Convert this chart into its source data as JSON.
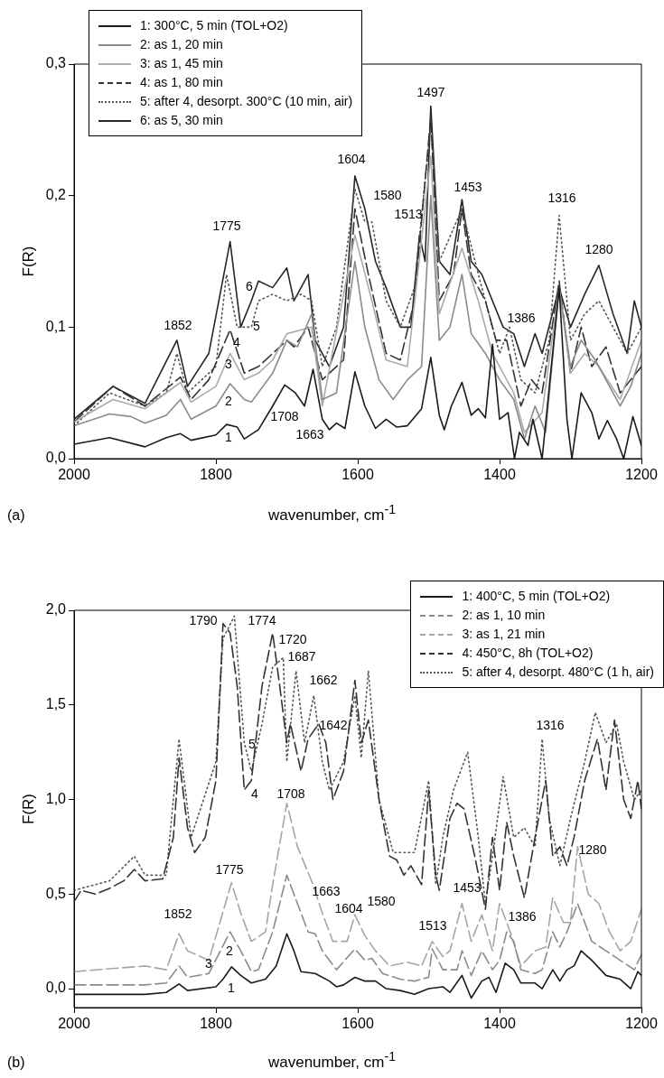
{
  "chart_data": [
    {
      "type": "line",
      "xlabel": "wavenumber, cm$^{-1}$",
      "ylabel": "F(R)",
      "xlim": [
        2000,
        1200
      ],
      "xticks": [
        2000,
        1800,
        1600,
        1400,
        1200
      ],
      "ylim": [
        0,
        0.3
      ],
      "yticks": [
        {
          "value": 0,
          "label": "0,0"
        },
        {
          "value": 0.1,
          "label": "0,1"
        },
        {
          "value": 0.2,
          "label": "0,2"
        },
        {
          "value": 0.3,
          "label": "0,3"
        }
      ],
      "legend": "top left",
      "marker": "none",
      "series": [
        {
          "name": "1: 300°C, 5 min (TOL+O2)",
          "color": "#1a1a1a",
          "line_style": "solid",
          "x": [
            2000,
            1950,
            1900,
            1870,
            1850,
            1835,
            1800,
            1785,
            1770,
            1760,
            1740,
            1720,
            1703,
            1688,
            1675,
            1663,
            1650,
            1640,
            1630,
            1618,
            1604,
            1590,
            1575,
            1560,
            1545,
            1530,
            1510,
            1497,
            1485,
            1478,
            1468,
            1453,
            1440,
            1430,
            1420,
            1410,
            1400,
            1388,
            1379,
            1372,
            1360,
            1353,
            1340,
            1316,
            1305,
            1298,
            1285,
            1270,
            1260,
            1248,
            1235,
            1225,
            1212,
            1200
          ],
          "values": [
            0.011,
            0.016,
            0.009,
            0.016,
            0.019,
            0.014,
            0.018,
            0.026,
            0.024,
            0.015,
            0.022,
            0.04,
            0.056,
            0.05,
            0.04,
            0.068,
            0.03,
            0.022,
            0.027,
            0.023,
            0.066,
            0.04,
            0.023,
            0.03,
            0.024,
            0.025,
            0.038,
            0.077,
            0.033,
            0.022,
            0.04,
            0.058,
            0.033,
            0.038,
            0.031,
            0.087,
            0.03,
            0.035,
            0.0,
            0.02,
            0.01,
            0.03,
            0.0,
            0.13,
            0.03,
            0.0,
            0.05,
            0.035,
            0.015,
            0.029,
            0.015,
            0.0,
            0.032,
            0.01
          ]
        },
        {
          "name": "2: as 1, 20 min",
          "color": "#8a8a8a",
          "line_style": "solid",
          "x": [
            2000,
            1950,
            1920,
            1900,
            1870,
            1850,
            1835,
            1800,
            1780,
            1760,
            1750,
            1720,
            1700,
            1685,
            1665,
            1650,
            1630,
            1604,
            1590,
            1570,
            1550,
            1530,
            1510,
            1497,
            1485,
            1470,
            1453,
            1440,
            1420,
            1400,
            1380,
            1365,
            1350,
            1335,
            1316,
            1300,
            1285,
            1265,
            1250,
            1230,
            1215,
            1200
          ],
          "values": [
            0.025,
            0.034,
            0.032,
            0.027,
            0.033,
            0.045,
            0.03,
            0.04,
            0.057,
            0.045,
            0.043,
            0.065,
            0.09,
            0.085,
            0.11,
            0.045,
            0.05,
            0.15,
            0.1,
            0.06,
            0.045,
            0.06,
            0.07,
            0.2,
            0.09,
            0.1,
            0.14,
            0.095,
            0.08,
            0.06,
            0.045,
            0.015,
            0.04,
            0.02,
            0.13,
            0.07,
            0.09,
            0.075,
            0.06,
            0.04,
            0.055,
            0.08
          ]
        },
        {
          "name": "3: as 1, 45 min",
          "color": "#ababab",
          "line_style": "solid",
          "x": [
            2000,
            1945,
            1900,
            1850,
            1835,
            1800,
            1780,
            1760,
            1740,
            1720,
            1700,
            1665,
            1650,
            1604,
            1580,
            1560,
            1530,
            1497,
            1485,
            1453,
            1430,
            1410,
            1380,
            1365,
            1340,
            1316,
            1300,
            1280,
            1260,
            1230,
            1200
          ],
          "values": [
            0.028,
            0.045,
            0.038,
            0.058,
            0.043,
            0.055,
            0.08,
            0.06,
            0.065,
            0.075,
            0.095,
            0.1,
            0.04,
            0.17,
            0.12,
            0.075,
            0.07,
            0.23,
            0.11,
            0.16,
            0.12,
            0.08,
            0.05,
            0.02,
            0.035,
            0.13,
            0.065,
            0.08,
            0.07,
            0.045,
            0.09
          ]
        },
        {
          "name": "4: as 1, 80 min",
          "color": "#333333",
          "line_style": "dashed",
          "x": [
            2000,
            1945,
            1900,
            1850,
            1835,
            1810,
            1780,
            1760,
            1740,
            1720,
            1700,
            1690,
            1670,
            1650,
            1620,
            1604,
            1585,
            1560,
            1540,
            1520,
            1497,
            1485,
            1465,
            1453,
            1440,
            1420,
            1405,
            1390,
            1370,
            1355,
            1340,
            1316,
            1300,
            1285,
            1270,
            1250,
            1230,
            1200
          ],
          "values": [
            0.028,
            0.055,
            0.04,
            0.062,
            0.045,
            0.06,
            0.098,
            0.065,
            0.07,
            0.08,
            0.09,
            0.085,
            0.1,
            0.06,
            0.075,
            0.19,
            0.14,
            0.08,
            0.075,
            0.12,
            0.26,
            0.12,
            0.14,
            0.19,
            0.14,
            0.12,
            0.09,
            0.09,
            0.04,
            0.06,
            0.05,
            0.135,
            0.065,
            0.1,
            0.07,
            0.085,
            0.05,
            0.07
          ]
        },
        {
          "name": "5: after 4, desorpt. 300°C (10 min, air)",
          "color": "#555555",
          "line_style": "dotted",
          "x": [
            2000,
            1950,
            1900,
            1870,
            1855,
            1840,
            1800,
            1785,
            1770,
            1750,
            1740,
            1720,
            1700,
            1680,
            1665,
            1650,
            1630,
            1604,
            1590,
            1580,
            1560,
            1540,
            1520,
            1497,
            1485,
            1453,
            1430,
            1410,
            1400,
            1386,
            1370,
            1350,
            1330,
            1316,
            1300,
            1280,
            1260,
            1240,
            1220,
            1200
          ],
          "values": [
            0.025,
            0.05,
            0.04,
            0.05,
            0.08,
            0.05,
            0.07,
            0.14,
            0.1,
            0.1,
            0.12,
            0.125,
            0.12,
            0.125,
            0.12,
            0.07,
            0.1,
            0.205,
            0.18,
            0.18,
            0.12,
            0.1,
            0.13,
            0.255,
            0.15,
            0.19,
            0.14,
            0.1,
            0.08,
            0.1,
            0.06,
            0.05,
            0.09,
            0.185,
            0.09,
            0.11,
            0.12,
            0.1,
            0.08,
            0.1
          ]
        },
        {
          "name": "6: as 5, 30 min",
          "color": "#262626",
          "line_style": "solid",
          "x": [
            2000,
            1945,
            1900,
            1855,
            1840,
            1810,
            1780,
            1765,
            1750,
            1740,
            1720,
            1700,
            1690,
            1670,
            1660,
            1640,
            1620,
            1604,
            1590,
            1575,
            1560,
            1540,
            1525,
            1513,
            1505,
            1497,
            1485,
            1470,
            1453,
            1440,
            1425,
            1410,
            1395,
            1380,
            1365,
            1350,
            1340,
            1316,
            1300,
            1280,
            1260,
            1240,
            1220,
            1210,
            1200
          ],
          "values": [
            0.03,
            0.055,
            0.042,
            0.09,
            0.055,
            0.08,
            0.165,
            0.1,
            0.12,
            0.135,
            0.13,
            0.145,
            0.12,
            0.14,
            0.09,
            0.07,
            0.1,
            0.215,
            0.19,
            0.15,
            0.13,
            0.1,
            0.1,
            0.17,
            0.15,
            0.268,
            0.15,
            0.14,
            0.197,
            0.15,
            0.14,
            0.12,
            0.1,
            0.095,
            0.07,
            0.095,
            0.08,
            0.13,
            0.1,
            0.125,
            0.147,
            0.11,
            0.08,
            0.12,
            0.1
          ]
        }
      ],
      "annotations": [
        "(a)",
        "1775",
        "1604",
        "1580",
        "1513",
        "1497",
        "1453",
        "1316",
        "1280",
        "1852",
        "1386",
        "1708",
        "1663",
        "1",
        "2",
        "3",
        "4",
        "5",
        "6"
      ]
    },
    {
      "type": "line",
      "xlabel": "wavenumber, cm$^{-1}$",
      "ylabel": "F(R)",
      "xlim": [
        2000,
        1200
      ],
      "xticks": [
        2000,
        1800,
        1600,
        1400,
        1200
      ],
      "ylim": [
        -0.1,
        2.0
      ],
      "yticks": [
        {
          "value": 0,
          "label": "0,0"
        },
        {
          "value": 0.5,
          "label": "0,5"
        },
        {
          "value": 1.0,
          "label": "1,0"
        },
        {
          "value": 1.5,
          "label": "1,5"
        },
        {
          "value": 2.0,
          "label": "2,0"
        }
      ],
      "legend": "top right",
      "marker": "none",
      "series": [
        {
          "name": "1: 400°C, 5 min (TOL+O2)",
          "color": "#1a1a1a",
          "line_style": "solid",
          "x": [
            2000,
            1900,
            1870,
            1852,
            1840,
            1800,
            1790,
            1778,
            1765,
            1750,
            1730,
            1715,
            1700,
            1690,
            1680,
            1660,
            1640,
            1630,
            1620,
            1604,
            1590,
            1575,
            1560,
            1540,
            1520,
            1500,
            1480,
            1470,
            1453,
            1440,
            1425,
            1415,
            1405,
            1392,
            1380,
            1370,
            1350,
            1340,
            1325,
            1315,
            1305,
            1295,
            1285,
            1270,
            1250,
            1230,
            1215,
            1205,
            1200
          ],
          "values": [
            -0.03,
            -0.03,
            -0.02,
            0.025,
            -0.01,
            0.01,
            0.05,
            0.115,
            0.07,
            0.03,
            0.05,
            0.12,
            0.29,
            0.2,
            0.09,
            0.08,
            0.04,
            0.01,
            0.02,
            0.06,
            0.04,
            0.04,
            0.0,
            -0.01,
            -0.03,
            0.0,
            0.01,
            -0.02,
            0.07,
            -0.05,
            0.04,
            0.06,
            -0.02,
            0.135,
            0.1,
            0.03,
            0.03,
            0.0,
            0.1,
            0.04,
            0.1,
            0.12,
            0.2,
            0.15,
            0.07,
            0.05,
            0.0,
            0.09,
            0.07
          ]
        },
        {
          "name": "2: as 1, 10 min",
          "color": "#8a8a8a",
          "line_style": "dashed",
          "x": [
            2000,
            1900,
            1870,
            1852,
            1840,
            1810,
            1780,
            1765,
            1750,
            1740,
            1720,
            1700,
            1685,
            1670,
            1660,
            1650,
            1630,
            1604,
            1590,
            1580,
            1565,
            1540,
            1520,
            1500,
            1495,
            1480,
            1460,
            1453,
            1440,
            1425,
            1410,
            1400,
            1390,
            1380,
            1370,
            1350,
            1340,
            1325,
            1315,
            1305,
            1290,
            1270,
            1250,
            1230,
            1210,
            1200
          ],
          "values": [
            0.02,
            0.02,
            0.03,
            0.12,
            0.06,
            0.08,
            0.3,
            0.2,
            0.09,
            0.1,
            0.3,
            0.6,
            0.45,
            0.3,
            0.29,
            0.2,
            0.1,
            0.21,
            0.15,
            0.16,
            0.08,
            0.05,
            0.04,
            0.06,
            0.21,
            0.1,
            0.1,
            0.2,
            0.07,
            0.2,
            0.1,
            0.15,
            0.3,
            0.25,
            0.1,
            0.08,
            0.1,
            0.3,
            0.22,
            0.3,
            0.45,
            0.25,
            0.2,
            0.15,
            0.1,
            0.18
          ]
        },
        {
          "name": "3: as 1, 21 min",
          "color": "#a5a5a5",
          "line_style": "dashed",
          "x": [
            2000,
            1900,
            1870,
            1852,
            1840,
            1810,
            1778,
            1765,
            1750,
            1730,
            1720,
            1700,
            1685,
            1663,
            1650,
            1635,
            1615,
            1604,
            1590,
            1575,
            1555,
            1530,
            1510,
            1495,
            1480,
            1470,
            1453,
            1440,
            1425,
            1410,
            1400,
            1385,
            1370,
            1350,
            1335,
            1325,
            1310,
            1300,
            1290,
            1275,
            1260,
            1245,
            1230,
            1215,
            1200
          ],
          "values": [
            0.09,
            0.12,
            0.1,
            0.29,
            0.2,
            0.15,
            0.56,
            0.4,
            0.25,
            0.3,
            0.55,
            0.98,
            0.75,
            0.55,
            0.4,
            0.25,
            0.25,
            0.39,
            0.28,
            0.2,
            0.12,
            0.14,
            0.12,
            0.25,
            0.17,
            0.2,
            0.45,
            0.25,
            0.39,
            0.2,
            0.45,
            0.3,
            0.12,
            0.2,
            0.22,
            0.48,
            0.35,
            0.35,
            0.75,
            0.5,
            0.45,
            0.3,
            0.2,
            0.25,
            0.42
          ]
        },
        {
          "name": "4: 450°C, 8h (TOL+O2)",
          "color": "#333333",
          "line_style": "dashed",
          "x": [
            2000,
            1990,
            1970,
            1950,
            1930,
            1915,
            1900,
            1875,
            1860,
            1852,
            1840,
            1830,
            1815,
            1800,
            1790,
            1780,
            1770,
            1760,
            1750,
            1735,
            1720,
            1710,
            1700,
            1695,
            1680,
            1670,
            1655,
            1645,
            1635,
            1620,
            1604,
            1595,
            1585,
            1570,
            1555,
            1545,
            1535,
            1525,
            1510,
            1500,
            1490,
            1485,
            1470,
            1460,
            1450,
            1435,
            1420,
            1410,
            1400,
            1390,
            1380,
            1365,
            1350,
            1335,
            1325,
            1315,
            1305,
            1295,
            1280,
            1262,
            1250,
            1238,
            1225,
            1215,
            1205,
            1200
          ],
          "values": [
            0.46,
            0.52,
            0.5,
            0.53,
            0.57,
            0.63,
            0.57,
            0.58,
            0.8,
            1.22,
            0.85,
            0.72,
            0.8,
            1.1,
            1.93,
            1.88,
            1.6,
            1.05,
            1.1,
            1.6,
            1.88,
            1.6,
            1.3,
            1.4,
            1.15,
            1.32,
            1.4,
            1.3,
            1.0,
            1.15,
            1.63,
            1.3,
            1.42,
            1.0,
            0.7,
            0.68,
            0.6,
            0.65,
            0.55,
            1.05,
            0.6,
            0.52,
            0.9,
            0.98,
            0.95,
            0.7,
            0.42,
            0.8,
            0.52,
            0.88,
            0.7,
            0.48,
            0.8,
            1.1,
            0.7,
            0.75,
            0.65,
            0.8,
            1.1,
            1.32,
            1.05,
            1.42,
            1.0,
            0.9,
            1.1,
            0.95
          ]
        },
        {
          "name": "5: after 4, desorpt. 480°C (1 h, air)",
          "color": "#555555",
          "line_style": "dotted",
          "x": [
            2000,
            1950,
            1915,
            1900,
            1870,
            1852,
            1835,
            1800,
            1790,
            1774,
            1760,
            1750,
            1735,
            1720,
            1705,
            1700,
            1687,
            1675,
            1662,
            1650,
            1640,
            1620,
            1604,
            1595,
            1585,
            1570,
            1550,
            1520,
            1500,
            1490,
            1480,
            1465,
            1445,
            1430,
            1420,
            1410,
            1395,
            1380,
            1365,
            1350,
            1340,
            1330,
            1315,
            1300,
            1280,
            1265,
            1250,
            1235,
            1225,
            1210,
            1200
          ],
          "values": [
            0.52,
            0.57,
            0.7,
            0.6,
            0.6,
            1.32,
            0.8,
            1.2,
            1.85,
            1.97,
            1.3,
            1.15,
            1.4,
            1.7,
            1.75,
            1.2,
            1.68,
            1.3,
            1.55,
            1.2,
            1.05,
            1.2,
            1.55,
            1.22,
            1.68,
            1.0,
            0.72,
            0.72,
            1.1,
            0.55,
            0.8,
            1.05,
            1.25,
            0.8,
            0.45,
            0.7,
            1.12,
            0.8,
            0.85,
            0.75,
            1.32,
            0.9,
            0.65,
            0.9,
            1.2,
            1.46,
            1.3,
            1.4,
            1.2,
            1.0,
            1.05
          ]
        }
      ],
      "annotations": [
        "(b)",
        "1790",
        "1774",
        "1720",
        "1687",
        "1662",
        "1642",
        "1316",
        "1708",
        "1775",
        "1663",
        "1852",
        "1604",
        "1580",
        "1513",
        "1453",
        "1386",
        "1280",
        "5",
        "4",
        "3",
        "2",
        "1"
      ]
    }
  ]
}
